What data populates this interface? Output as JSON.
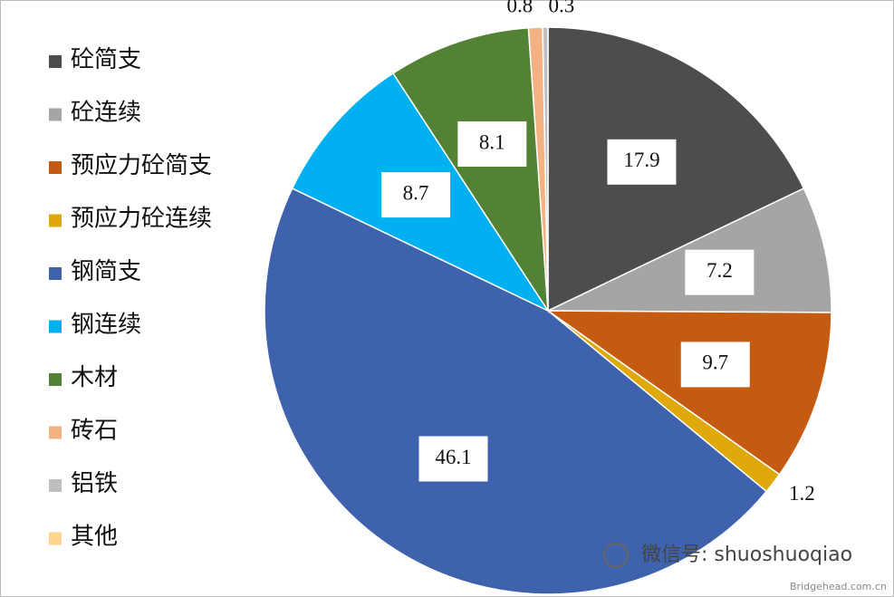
{
  "chart_data": {
    "type": "pie",
    "categories": [
      "砼简支",
      "砼连续",
      "预应力砼简支",
      "预应力砼连续",
      "钢简支",
      "钢连续",
      "木材",
      "砖石",
      "铝铁",
      "其他"
    ],
    "values": [
      17.9,
      7.2,
      9.7,
      1.2,
      46.1,
      8.7,
      8.1,
      0.8,
      0.3,
      null
    ],
    "colors": [
      "#4d4d4d",
      "#a5a5a5",
      "#c55a11",
      "#dfa80b",
      "#3f62ad",
      "#00b0f0",
      "#548235",
      "#f4b183",
      "#bfbfbf",
      "#ffd48f"
    ],
    "legend": "left"
  },
  "watermark": {
    "account": "微信号: shuoshuoqiao",
    "site": "Bridgehead.com.cn"
  }
}
